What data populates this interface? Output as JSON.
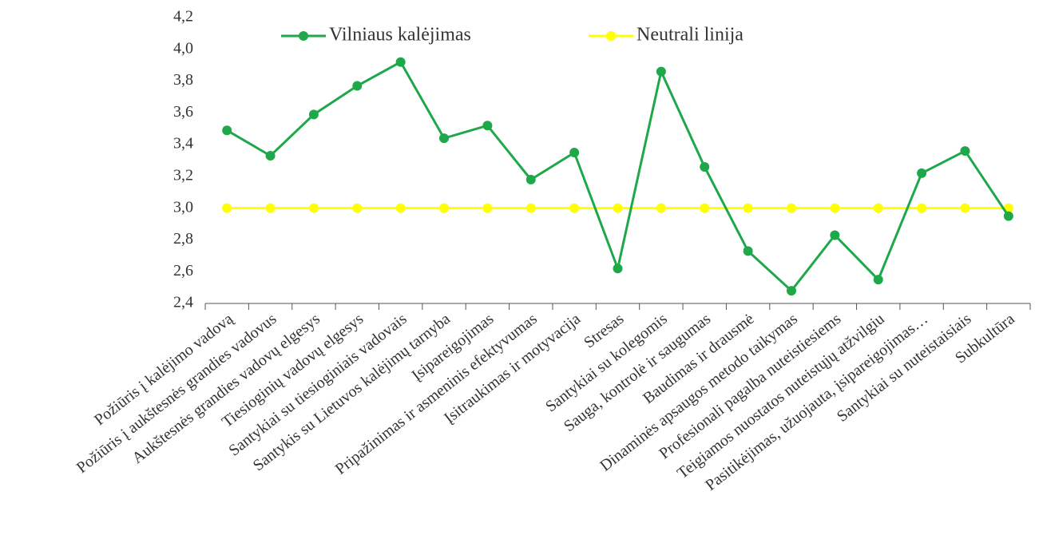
{
  "chart_data": {
    "type": "line",
    "categories": [
      "Požiūris į kalėjimo vadovą",
      "Požiūris į aukštesnės grandies vadovus",
      "Aukštesnės grandies vadovų elgesys",
      "Tiesioginių vadovų elgesys",
      "Santykiai su tiesioginiais vadovais",
      "Santykis su Lietuvos kalėjimų tarnyba",
      "Įsipareigojimas",
      "Pripažinimas ir asmeninis efektyvumas",
      "Įsitraukimas ir motyvacija",
      "Stresas",
      "Santykiai su kolegomis",
      "Sauga, kontrolė ir saugumas",
      "Baudimas ir drausmė",
      "Dinaminės apsaugos metodo taikymas",
      "Profesionali pagalba nuteistiesiems",
      "Teigiamos nuostatos nuteistųjų atžvilgiu",
      "Pasitikėjimas, užuojauta, įsipareigojimas…",
      "Santykiai su nuteistaisiais",
      "Subkultūra"
    ],
    "series": [
      {
        "name": "Vilniaus kalėjimas",
        "color": "#1ea84a",
        "values": [
          3.49,
          3.33,
          3.59,
          3.77,
          3.92,
          3.44,
          3.52,
          3.18,
          3.35,
          2.62,
          3.86,
          3.26,
          2.73,
          2.48,
          2.83,
          2.55,
          3.22,
          3.36,
          2.95
        ]
      },
      {
        "name": "Neutrali linija",
        "color": "#ffff00",
        "values": [
          3,
          3,
          3,
          3,
          3,
          3,
          3,
          3,
          3,
          3,
          3,
          3,
          3,
          3,
          3,
          3,
          3,
          3,
          3
        ]
      }
    ],
    "ylim": [
      2.4,
      4.2
    ],
    "yticks": [
      {
        "value": 2.4,
        "label": "2,4"
      },
      {
        "value": 2.6,
        "label": "2,6"
      },
      {
        "value": 2.8,
        "label": "2,8"
      },
      {
        "value": 3.0,
        "label": "3,0"
      },
      {
        "value": 3.2,
        "label": "3,2"
      },
      {
        "value": 3.4,
        "label": "3,4"
      },
      {
        "value": 3.6,
        "label": "3,6"
      },
      {
        "value": 3.8,
        "label": "3,8"
      },
      {
        "value": 4.0,
        "label": "4,0"
      },
      {
        "value": 4.2,
        "label": "4,2"
      }
    ],
    "legend": "top"
  }
}
